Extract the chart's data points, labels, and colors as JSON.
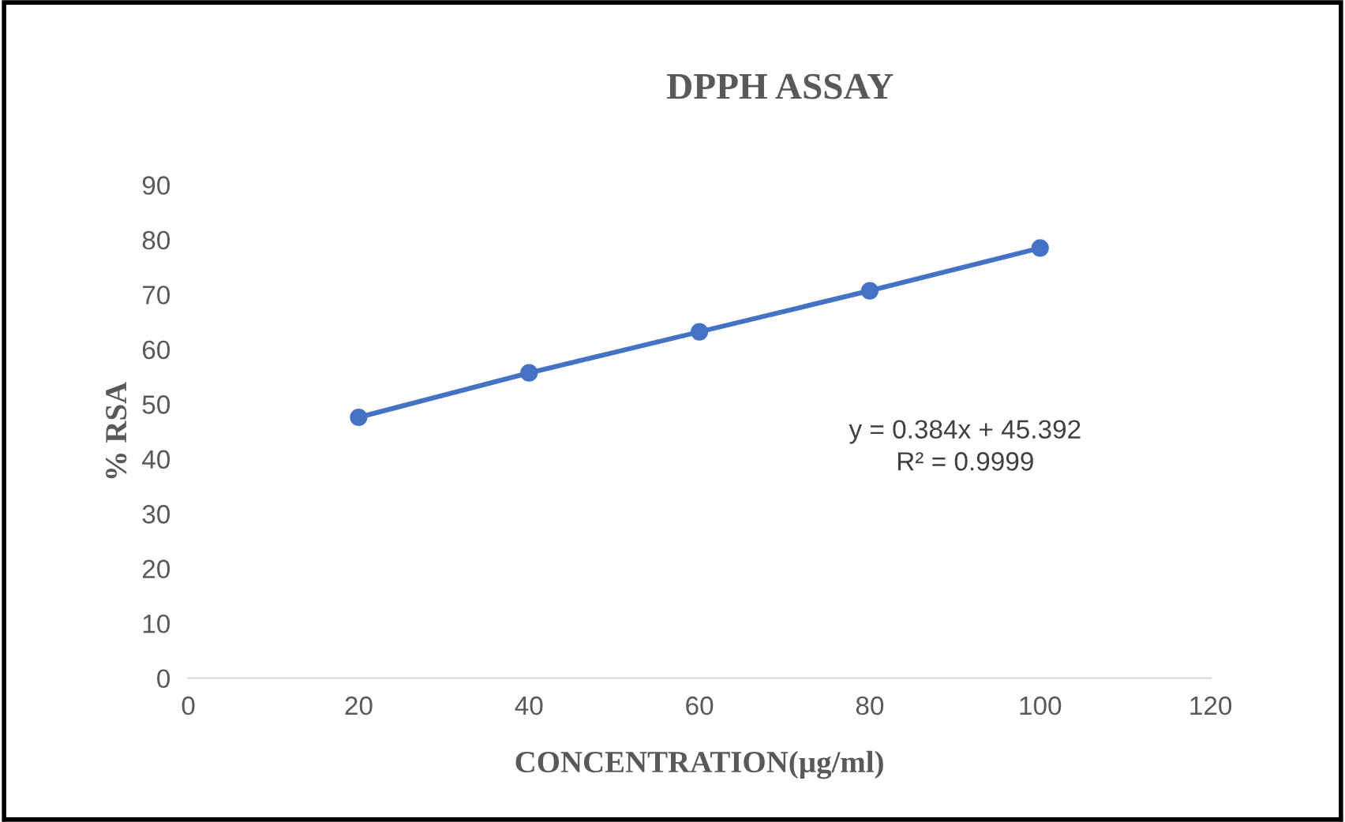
{
  "chart_data": {
    "type": "line",
    "title": "DPPH ASSAY",
    "xlabel": "CONCENTRATION(µg/ml)",
    "ylabel": "% RSA",
    "x": [
      20,
      40,
      60,
      80,
      100
    ],
    "series": [
      {
        "color": "#4472c4",
        "values": [
          47.6,
          55.7,
          63.2,
          70.7,
          78.5
        ]
      }
    ],
    "xlim": [
      0,
      120
    ],
    "xticks": [
      0,
      20,
      40,
      60,
      80,
      100,
      120
    ],
    "ylim": [
      0,
      90
    ],
    "yticks": [
      0,
      10,
      20,
      30,
      40,
      50,
      60,
      70,
      80,
      90
    ],
    "marker": "circle",
    "line_style": "solid",
    "grid": false,
    "legend": false,
    "annotations": [
      "y = 0.384x + 45.392",
      "R² = 0.9999"
    ]
  }
}
